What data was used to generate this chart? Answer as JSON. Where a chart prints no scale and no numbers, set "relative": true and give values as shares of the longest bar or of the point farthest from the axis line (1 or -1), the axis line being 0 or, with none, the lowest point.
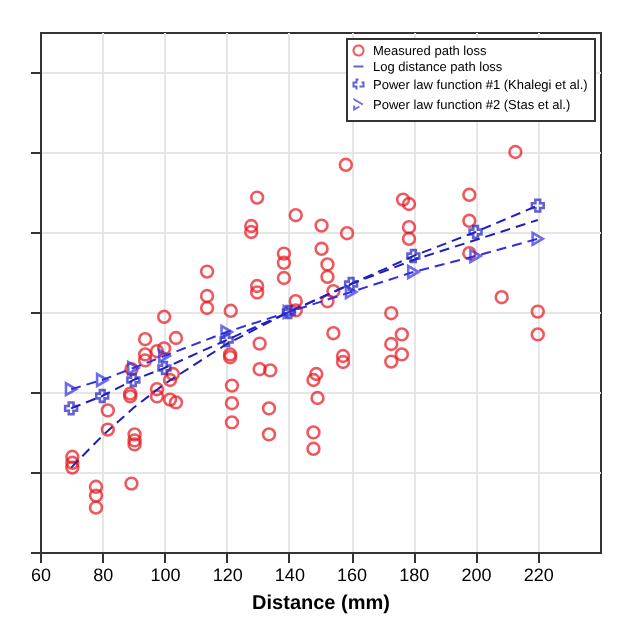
{
  "chart_data": {
    "type": "scatter",
    "xlabel": "Distance (mm)",
    "relative": true,
    "xlim": [
      60,
      240
    ],
    "xticks": [
      60,
      80,
      100,
      120,
      140,
      160,
      180,
      200,
      220
    ],
    "grid": true,
    "legend": "top right",
    "series": [
      {
        "name": "Measured path loss",
        "marker": "circle",
        "color": "#e8141c",
        "x": [
          93.8,
          103.7,
          93.8,
          93.8,
          99.9,
          97.6,
          89.4,
          102.7,
          101.8,
          97.6,
          97.6,
          101.8,
          103.7,
          89.0,
          89.0,
          81.8,
          81.8,
          90.4,
          90.4,
          90.4,
          70.4,
          70.4,
          70.4,
          78.0,
          78.0,
          78.0,
          89.4,
          121.1,
          121.1,
          121.7,
          121.7,
          121.7,
          130.6,
          130.6,
          134.0,
          133.6,
          133.6,
          154.3,
          148.8,
          147.9,
          149.2,
          147.9,
          147.9,
          157.4,
          157.4,
          172.9,
          172.9,
          176.3,
          176.3,
          220,
          99.9,
          113.7,
          113.7,
          113.7,
          121.3,
          129.8,
          127.9,
          127.9,
          129.8,
          129.8,
          138.4,
          138.4,
          138.4,
          142.2,
          142.2,
          142.2,
          150.5,
          150.5,
          152.4,
          152.4,
          154.3,
          152.4,
          158.3,
          158.7,
          176.7,
          178.6,
          178.6,
          178.6,
          172.9,
          198.0,
          198.0,
          198.0,
          208.4,
          212.8,
          220
        ],
        "values": [
          0.532,
          0.535,
          0.494,
          0.479,
          0.509,
          0.502,
          0.457,
          0.445,
          0.43,
          0.407,
          0.389,
          0.381,
          0.374,
          0.396,
          0.389,
          0.354,
          0.306,
          0.294,
          0.279,
          0.269,
          0.238,
          0.223,
          0.211,
          0.163,
          0.141,
          0.111,
          0.171,
          0.494,
          0.487,
          0.416,
          0.372,
          0.324,
          0.521,
          0.457,
          0.454,
          0.359,
          0.294,
          0.547,
          0.445,
          0.43,
          0.385,
          0.299,
          0.258,
          0.49,
          0.475,
          0.52,
          0.476,
          0.544,
          0.494,
          0.544,
          0.588,
          0.701,
          0.64,
          0.61,
          0.603,
          0.886,
          0.815,
          0.8,
          0.665,
          0.649,
          0.746,
          0.723,
          0.685,
          0.842,
          0.627,
          0.604,
          0.816,
          0.758,
          0.719,
          0.688,
          0.652,
          0.627,
          0.968,
          0.797,
          0.881,
          0.87,
          0.812,
          0.783,
          0.597,
          0.893,
          0.828,
          0.747,
          0.637,
          1,
          0.601
        ]
      },
      {
        "name": "Log distance path loss",
        "type": "line",
        "marker": "none",
        "line_style": "dashed",
        "color": "#2020b0",
        "x": [
          70,
          80,
          90,
          100,
          120,
          140,
          160,
          180,
          200,
          220
        ],
        "values": [
          0.211,
          0.29,
          0.36,
          0.42,
          0.52,
          0.6,
          0.67,
          0.73,
          0.78,
          0.83
        ]
      },
      {
        "name": "Power law function #1 (Khalegi et al.)",
        "type": "line",
        "marker": "cross",
        "line_style": "dashed",
        "color": "#2020c0",
        "x": [
          70,
          80,
          90,
          100,
          120,
          140,
          160,
          180,
          200,
          220
        ],
        "values": [
          0.359,
          0.39,
          0.43,
          0.46,
          0.53,
          0.6,
          0.67,
          0.74,
          0.8,
          0.866
        ]
      },
      {
        "name": "Power law function #2 (Stas et al.)",
        "type": "line",
        "marker": "triangle",
        "line_style": "dashed",
        "color": "#3030e0",
        "x": [
          70,
          80,
          90,
          100,
          120,
          140,
          160,
          180,
          200,
          220
        ],
        "values": [
          0.407,
          0.43,
          0.46,
          0.49,
          0.55,
          0.6,
          0.65,
          0.7,
          0.74,
          0.783
        ]
      }
    ]
  }
}
